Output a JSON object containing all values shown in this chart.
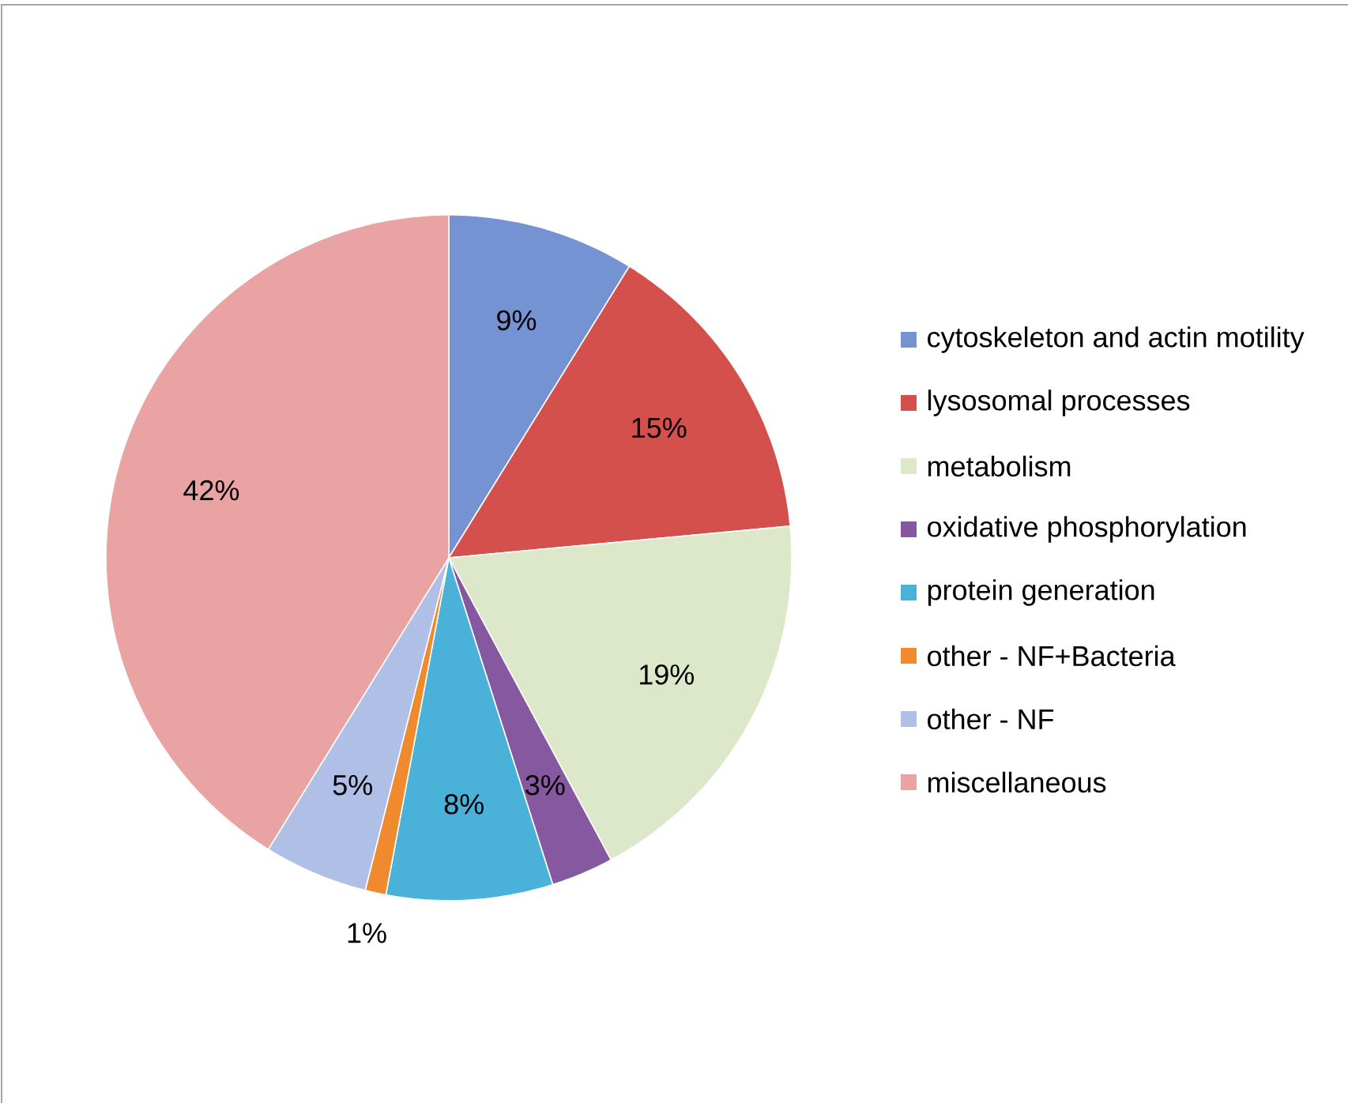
{
  "chart_data": {
    "type": "pie",
    "categories": [
      "cytoskeleton and actin motility",
      "lysosomal processes",
      "metabolism",
      "oxidative phosphorylation",
      "protein generation",
      "other - NF+Bacteria",
      "other - NF",
      "miscellaneous"
    ],
    "values": [
      9,
      15,
      19,
      3,
      8,
      1,
      5,
      42
    ],
    "value_labels": [
      "9%",
      "15%",
      "19%",
      "3%",
      "8%",
      "1%",
      "5%",
      "42%"
    ],
    "colors": [
      "#7593d3",
      "#d4504d",
      "#dde8cb",
      "#8558a0",
      "#4ab2d8",
      "#f08a2e",
      "#afbfe6",
      "#eaa3a3"
    ],
    "legend": "right"
  }
}
